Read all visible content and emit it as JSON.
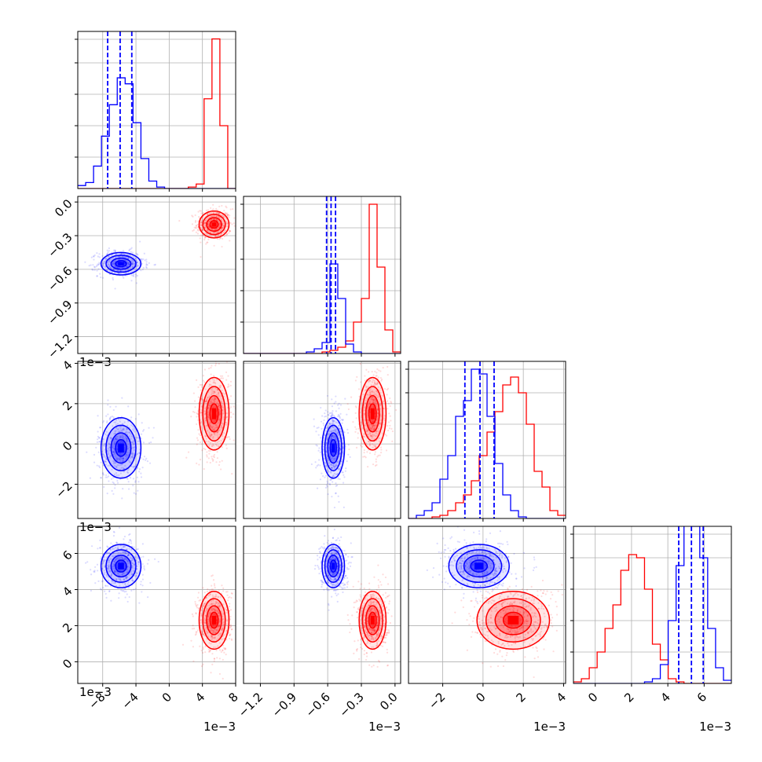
{
  "chart_data": {
    "type": "corner",
    "colors": {
      "red": "#ff0000",
      "blue": "#0000ff",
      "grid": "#b0b0b0"
    },
    "grid": true,
    "parameters": [
      {
        "ticks": [
          -8,
          -4,
          0,
          4,
          8
        ],
        "tick_labels": [
          "−8",
          "−4",
          "0",
          "4",
          "8"
        ],
        "range": [
          -11,
          8
        ],
        "offset_label": "1e−3"
      },
      {
        "ticks": [
          -1.2,
          -0.9,
          -0.6,
          -0.3,
          0.0
        ],
        "tick_labels": [
          "−1.2",
          "−0.9",
          "−0.6",
          "−0.3",
          "0.0"
        ],
        "range": [
          -1.35,
          0.05
        ],
        "offset_label": "1e−3"
      },
      {
        "ticks": [
          -2,
          0,
          2,
          4
        ],
        "tick_labels": [
          "−2",
          "0",
          "2",
          "4"
        ],
        "range": [
          -3.7,
          4.1
        ],
        "offset_label": "1e−3"
      },
      {
        "ticks": [
          0,
          2,
          4,
          6
        ],
        "tick_labels": [
          "0",
          "2",
          "4",
          "6"
        ],
        "range": [
          -1.2,
          7.5
        ],
        "offset_label": "1e−3"
      }
    ],
    "series": [
      {
        "color": "red",
        "means": [
          5.4,
          -0.2,
          1.5,
          2.3
        ],
        "sigmas": [
          0.9,
          0.06,
          0.9,
          0.8
        ],
        "quantiles": null
      },
      {
        "color": "blue",
        "means": [
          -5.8,
          -0.55,
          -0.2,
          5.3
        ],
        "sigmas": [
          1.2,
          0.05,
          0.75,
          0.6
        ],
        "quantiles": [
          [
            -7.4,
            -5.9,
            -4.5
          ],
          [
            -0.61,
            -0.57,
            -0.53
          ],
          [
            -0.9,
            -0.15,
            0.55
          ],
          [
            4.6,
            5.3,
            5.95
          ]
        ]
      }
    ],
    "panels": [
      {
        "row": 0,
        "col": 0,
        "type": "histogram"
      },
      {
        "row": 1,
        "col": 0,
        "type": "scatter-contour"
      },
      {
        "row": 1,
        "col": 1,
        "type": "histogram"
      },
      {
        "row": 2,
        "col": 0,
        "type": "scatter-contour"
      },
      {
        "row": 2,
        "col": 1,
        "type": "scatter-contour"
      },
      {
        "row": 2,
        "col": 2,
        "type": "histogram"
      },
      {
        "row": 3,
        "col": 0,
        "type": "scatter-contour"
      },
      {
        "row": 3,
        "col": 1,
        "type": "scatter-contour"
      },
      {
        "row": 3,
        "col": 2,
        "type": "scatter-contour"
      },
      {
        "row": 3,
        "col": 3,
        "type": "histogram"
      }
    ],
    "histograms": [
      {
        "param": 0,
        "bins": [
          -11.0,
          -10.05,
          -9.1,
          -8.15,
          -7.2,
          -6.25,
          -5.3,
          -4.35,
          -3.4,
          -2.45,
          -1.5,
          -0.55,
          0.4,
          1.35,
          2.3,
          3.25,
          4.2,
          5.15,
          6.1,
          7.05,
          8.0
        ],
        "red": [
          0,
          0,
          0,
          0,
          0,
          0,
          0,
          0,
          0,
          0,
          0,
          0,
          0,
          0,
          1,
          3,
          60,
          100,
          42,
          0
        ],
        "blue": [
          2,
          4,
          15,
          35,
          56,
          74,
          70,
          44,
          20,
          5,
          1,
          0,
          0,
          0,
          0,
          0,
          0,
          0,
          0,
          0
        ],
        "ymax": 105
      },
      {
        "param": 1,
        "bins": [
          -1.35,
          -1.28,
          -1.21,
          -1.14,
          -1.07,
          -1.0,
          -0.93,
          -0.86,
          -0.79,
          -0.72,
          -0.65,
          -0.58,
          -0.51,
          -0.44,
          -0.37,
          -0.3,
          -0.23,
          -0.16,
          -0.09,
          -0.02,
          0.05
        ],
        "red": [
          0,
          0,
          0,
          0,
          0,
          0,
          0,
          0,
          0,
          0,
          1,
          2,
          4,
          8,
          20,
          35,
          95,
          55,
          15,
          1
        ],
        "blue": [
          0,
          0,
          0,
          0,
          0,
          0,
          0,
          0,
          1,
          3,
          7,
          57,
          35,
          6,
          1,
          0,
          0,
          0,
          0,
          0
        ],
        "ymax": 100
      },
      {
        "param": 2,
        "bins": [
          -3.7,
          -3.31,
          -2.92,
          -2.53,
          -2.14,
          -1.75,
          -1.36,
          -0.97,
          -0.58,
          -0.19,
          0.2,
          0.59,
          0.98,
          1.37,
          1.76,
          2.15,
          2.54,
          2.93,
          3.32,
          3.71,
          4.1
        ],
        "red": [
          0,
          0,
          0,
          1,
          2,
          5,
          10,
          15,
          24,
          40,
          55,
          68,
          85,
          90,
          80,
          60,
          30,
          20,
          5,
          2
        ],
        "blue": [
          0,
          2,
          5,
          10,
          25,
          40,
          65,
          75,
          95,
          92,
          65,
          35,
          15,
          5,
          1,
          0,
          0,
          0,
          0,
          0
        ],
        "ymax": 100
      },
      {
        "param": 3,
        "bins": [
          -1.2,
          -0.765,
          -0.33,
          0.105,
          0.54,
          0.975,
          1.41,
          1.845,
          2.28,
          2.715,
          3.15,
          3.585,
          4.02,
          4.455,
          4.89,
          5.325,
          5.76,
          6.195,
          6.63,
          7.065,
          7.5
        ],
        "red": [
          1,
          3,
          10,
          20,
          35,
          50,
          72,
          82,
          80,
          60,
          25,
          15,
          3,
          1,
          0,
          0,
          0,
          0,
          0,
          0
        ],
        "blue": [
          0,
          0,
          0,
          0,
          0,
          0,
          0,
          0,
          0,
          1,
          3,
          12,
          40,
          75,
          115,
          100,
          80,
          35,
          10,
          2
        ],
        "ymax": 100
      }
    ]
  }
}
